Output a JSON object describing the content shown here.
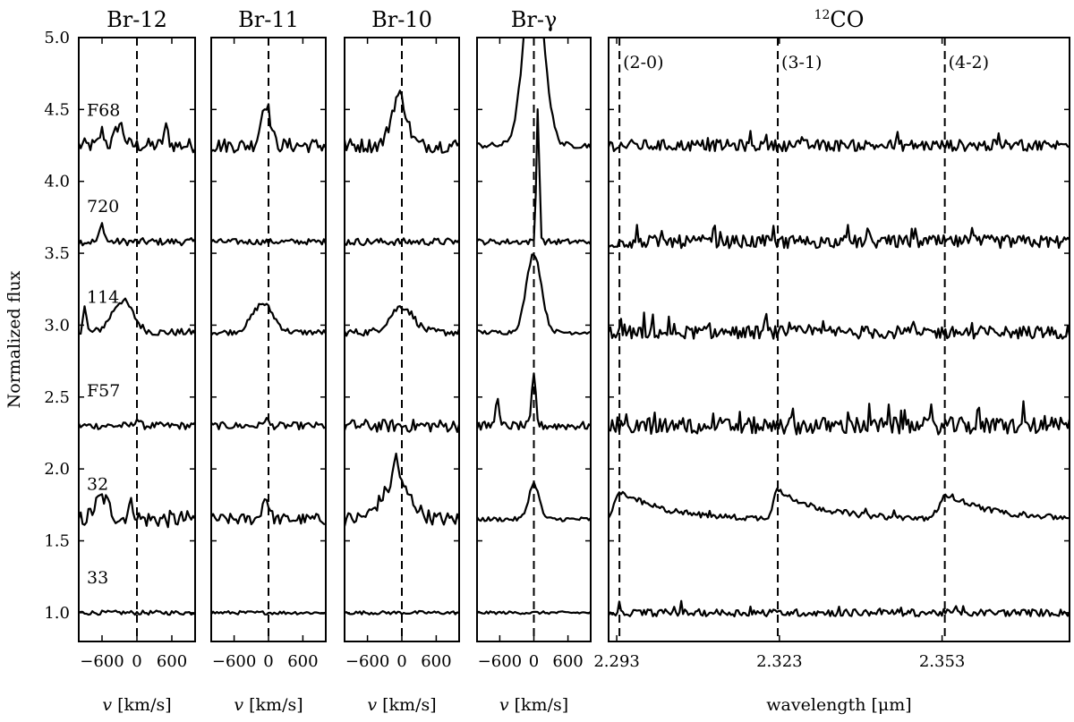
{
  "chart_data": {
    "type": "line",
    "ylabel": "Normalized flux",
    "ylim": [
      0.8,
      5.0
    ],
    "yticks": [
      "1.0",
      "1.5",
      "2.0",
      "2.5",
      "3.0",
      "3.5",
      "4.0",
      "4.5",
      "5.0"
    ],
    "stars": [
      {
        "name": "F68",
        "offset": 4.25
      },
      {
        "name": "720",
        "offset": 3.58
      },
      {
        "name": "114",
        "offset": 2.95
      },
      {
        "name": "F57",
        "offset": 2.3
      },
      {
        "name": "32",
        "offset": 1.65
      },
      {
        "name": "33",
        "offset": 1.0
      }
    ],
    "panels": [
      {
        "title": "Br-12",
        "xlabel": "v [km/s]",
        "xlim": [
          -1000,
          1000
        ],
        "xticks": [
          "-600",
          "0",
          "600"
        ],
        "ref_lines": [
          0
        ],
        "ref_labels": [],
        "series": [
          {
            "star": "F68",
            "features": [
              {
                "x": -300,
                "amp": 0.15,
                "w": 70
              },
              {
                "x": -600,
                "amp": 0.1,
                "w": 40
              },
              {
                "x": 500,
                "amp": 0.12,
                "w": 40
              }
            ],
            "noise": 0.05
          },
          {
            "star": "720",
            "features": [
              {
                "x": -600,
                "amp": 0.12,
                "w": 40
              }
            ],
            "noise": 0.025
          },
          {
            "star": "114",
            "features": [
              {
                "x": -250,
                "amp": 0.22,
                "w": 180
              },
              {
                "x": -900,
                "amp": 0.18,
                "w": 30
              }
            ],
            "noise": 0.025
          },
          {
            "star": "F57",
            "features": [
              {
                "x": 0,
                "amp": 0.05,
                "w": 40
              }
            ],
            "noise": 0.025
          },
          {
            "star": "32",
            "features": [
              {
                "x": -600,
                "amp": 0.15,
                "w": 120
              },
              {
                "x": -100,
                "amp": 0.1,
                "w": 60
              }
            ],
            "noise": 0.06
          },
          {
            "star": "33",
            "features": [],
            "noise": 0.015
          }
        ]
      },
      {
        "title": "Br-11",
        "xlabel": "v [km/s]",
        "xlim": [
          -1000,
          1000
        ],
        "xticks": [
          "-600",
          "0",
          "600"
        ],
        "ref_lines": [
          0
        ],
        "ref_labels": [],
        "series": [
          {
            "star": "F68",
            "features": [
              {
                "x": -50,
                "amp": 0.3,
                "w": 80
              }
            ],
            "noise": 0.05
          },
          {
            "star": "720",
            "features": [],
            "noise": 0.02
          },
          {
            "star": "114",
            "features": [
              {
                "x": -100,
                "amp": 0.2,
                "w": 180
              }
            ],
            "noise": 0.02
          },
          {
            "star": "F57",
            "features": [
              {
                "x": -50,
                "amp": 0.05,
                "w": 40
              }
            ],
            "noise": 0.025
          },
          {
            "star": "32",
            "features": [
              {
                "x": -50,
                "amp": 0.15,
                "w": 60
              }
            ],
            "noise": 0.04
          },
          {
            "star": "33",
            "features": [],
            "noise": 0.012
          }
        ]
      },
      {
        "title": "Br-10",
        "xlabel": "v [km/s]",
        "xlim": [
          -1000,
          1000
        ],
        "xticks": [
          "-600",
          "0",
          "600"
        ],
        "ref_lines": [
          0
        ],
        "ref_labels": [],
        "series": [
          {
            "star": "F68",
            "features": [
              {
                "x": -50,
                "amp": 0.35,
                "w": 130
              }
            ],
            "noise": 0.05
          },
          {
            "star": "720",
            "features": [],
            "noise": 0.025
          },
          {
            "star": "114",
            "features": [
              {
                "x": 0,
                "amp": 0.18,
                "w": 200
              }
            ],
            "noise": 0.025
          },
          {
            "star": "F57",
            "features": [],
            "noise": 0.045
          },
          {
            "star": "32",
            "features": [
              {
                "x": -100,
                "amp": 0.25,
                "w": 250
              },
              {
                "x": -100,
                "amp": 0.2,
                "w": 40
              }
            ],
            "noise": 0.05
          },
          {
            "star": "33",
            "features": [],
            "noise": 0.012
          }
        ]
      },
      {
        "title": "Br-γ",
        "xlabel": "v [km/s]",
        "xlim": [
          -1000,
          1000
        ],
        "xticks": [
          "-600",
          "0",
          "600"
        ],
        "ref_lines": [
          0
        ],
        "ref_labels": [],
        "series": [
          {
            "star": "F68",
            "features": [
              {
                "x": 0,
                "amp": 1.3,
                "w": 170
              }
            ],
            "noise": 0.02
          },
          {
            "star": "720",
            "features": [
              {
                "x": 70,
                "amp": 0.95,
                "w": 25
              }
            ],
            "noise": 0.02
          },
          {
            "star": "114",
            "features": [
              {
                "x": 0,
                "amp": 0.55,
                "w": 130
              }
            ],
            "noise": 0.015
          },
          {
            "star": "F57",
            "features": [
              {
                "x": 0,
                "amp": 0.35,
                "w": 35
              },
              {
                "x": -650,
                "amp": 0.2,
                "w": 30
              }
            ],
            "noise": 0.03
          },
          {
            "star": "32",
            "features": [
              {
                "x": 0,
                "amp": 0.25,
                "w": 90
              }
            ],
            "noise": 0.015
          },
          {
            "star": "33",
            "features": [],
            "noise": 0.01
          }
        ]
      },
      {
        "title": "12CO",
        "title_sup": "12",
        "title_main": "CO",
        "xlabel": "wavelength [μm]",
        "xlim": [
          2.2915,
          2.3765
        ],
        "xticks": [
          "2.293",
          "2.323",
          "2.353"
        ],
        "xtick_values": [
          2.293,
          2.323,
          2.353
        ],
        "ref_lines": [
          2.2935,
          2.3227,
          2.3535
        ],
        "ref_labels": [
          "(2-0)",
          "(3-1)",
          "(4-2)"
        ],
        "series": [
          {
            "star": "F68",
            "features": [],
            "noise": 0.04
          },
          {
            "star": "720",
            "features": [],
            "noise": 0.045
          },
          {
            "star": "114",
            "features": [],
            "noise": 0.045
          },
          {
            "star": "F57",
            "features": [],
            "noise": 0.06
          },
          {
            "star": "32",
            "features": [
              {
                "x": 2.2935,
                "amp": 0.2,
                "w": 0.002
              },
              {
                "x": 2.3227,
                "amp": 0.2,
                "w": 0.002
              },
              {
                "x": 2.3535,
                "amp": 0.18,
                "w": 0.002
              }
            ],
            "noise": 0.02
          },
          {
            "star": "33",
            "features": [],
            "noise": 0.025
          }
        ]
      }
    ]
  }
}
